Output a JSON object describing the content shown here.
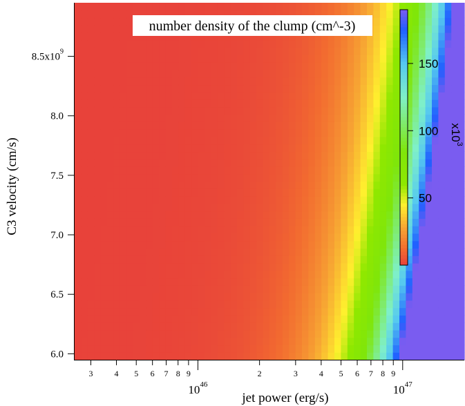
{
  "chart_data": {
    "type": "heatmap",
    "title": "number density of the clump (cm^-3)",
    "xlabel": "jet power (erg/s)",
    "ylabel": "C3 velocity (cm/s)",
    "x_scale": "log",
    "xlim": [
      2.5e+45,
      2e+47
    ],
    "ylim": [
      5950000000.0,
      8950000000.0
    ],
    "x_major_ticks": [
      {
        "value": 1e+46,
        "base": "10",
        "exp": "46"
      },
      {
        "value": 1e+47,
        "base": "10",
        "exp": "47"
      }
    ],
    "x_minor_ticks": [
      {
        "value": 3e+45,
        "label": "3"
      },
      {
        "value": 4e+45,
        "label": "4"
      },
      {
        "value": 5e+45,
        "label": "5"
      },
      {
        "value": 6e+45,
        "label": "6"
      },
      {
        "value": 7e+45,
        "label": "7"
      },
      {
        "value": 8e+45,
        "label": "8"
      },
      {
        "value": 9e+45,
        "label": "9"
      },
      {
        "value": 2e+46,
        "label": "2"
      },
      {
        "value": 3e+46,
        "label": "3"
      },
      {
        "value": 4e+46,
        "label": "4"
      },
      {
        "value": 5e+46,
        "label": "5"
      },
      {
        "value": 6e+46,
        "label": "6"
      },
      {
        "value": 7e+46,
        "label": "7"
      },
      {
        "value": 8e+46,
        "label": "8"
      },
      {
        "value": 9e+46,
        "label": "9"
      }
    ],
    "y_ticks": [
      {
        "value": 6000000000.0,
        "label": "6.0"
      },
      {
        "value": 6500000000.0,
        "label": "6.5"
      },
      {
        "value": 7000000000.0,
        "label": "7.0"
      },
      {
        "value": 7500000000.0,
        "label": "7.5"
      },
      {
        "value": 8000000000.0,
        "label": "8.0"
      },
      {
        "value": 8500000000.0,
        "label": "8.5x10",
        "exp": "9"
      }
    ],
    "colorbar": {
      "range": [
        0,
        190
      ],
      "multiplier": "x10",
      "multiplier_exp": "3",
      "ticks": [
        {
          "value": 50,
          "label": "50"
        },
        {
          "value": 100,
          "label": "100"
        },
        {
          "value": 150,
          "label": "150"
        }
      ],
      "colors": [
        "#e8423a",
        "#f26b30",
        "#f7a533",
        "#fff02e",
        "#8fe800",
        "#7fe60a",
        "#7ff0c8",
        "#55c8f0",
        "#1f5fff",
        "#7a5cf0"
      ]
    },
    "model": "density_kcm3 = 2.0 * P46^2 / (V9/6)^3",
    "grid": false,
    "legend": "none"
  }
}
